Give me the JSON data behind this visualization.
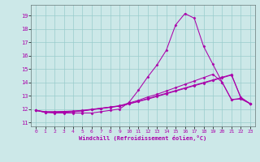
{
  "xlabel": "Windchill (Refroidissement éolien,°C)",
  "xlim": [
    -0.5,
    23.5
  ],
  "ylim": [
    10.7,
    19.8
  ],
  "yticks": [
    11,
    12,
    13,
    14,
    15,
    16,
    17,
    18,
    19
  ],
  "xticks": [
    0,
    1,
    2,
    3,
    4,
    5,
    6,
    7,
    8,
    9,
    10,
    11,
    12,
    13,
    14,
    15,
    16,
    17,
    18,
    19,
    20,
    21,
    22,
    23
  ],
  "bg_color": "#cce8e8",
  "grid_color": "#99cccc",
  "line_color": "#aa00aa",
  "series": [
    [
      11.9,
      11.75,
      11.7,
      11.7,
      11.7,
      11.7,
      11.7,
      11.8,
      11.9,
      12.0,
      12.5,
      13.4,
      14.4,
      15.3,
      16.4,
      18.3,
      19.15,
      18.8,
      16.7,
      15.35,
      14.0,
      12.7,
      12.8,
      12.4
    ],
    [
      11.9,
      11.75,
      11.75,
      11.75,
      11.8,
      11.85,
      11.95,
      12.05,
      12.15,
      12.25,
      12.45,
      12.65,
      12.9,
      13.1,
      13.35,
      13.6,
      13.85,
      14.1,
      14.35,
      14.6,
      14.0,
      12.7,
      12.75,
      12.4
    ],
    [
      11.9,
      11.78,
      11.78,
      11.8,
      11.82,
      11.88,
      11.96,
      12.04,
      12.12,
      12.22,
      12.4,
      12.58,
      12.78,
      12.98,
      13.18,
      13.38,
      13.58,
      13.78,
      13.98,
      14.18,
      14.38,
      14.58,
      12.82,
      12.4
    ],
    [
      11.9,
      11.8,
      11.8,
      11.82,
      11.85,
      11.9,
      11.98,
      12.06,
      12.14,
      12.22,
      12.38,
      12.56,
      12.74,
      12.94,
      13.14,
      13.34,
      13.54,
      13.74,
      13.94,
      14.14,
      14.34,
      14.54,
      12.88,
      12.4
    ]
  ]
}
